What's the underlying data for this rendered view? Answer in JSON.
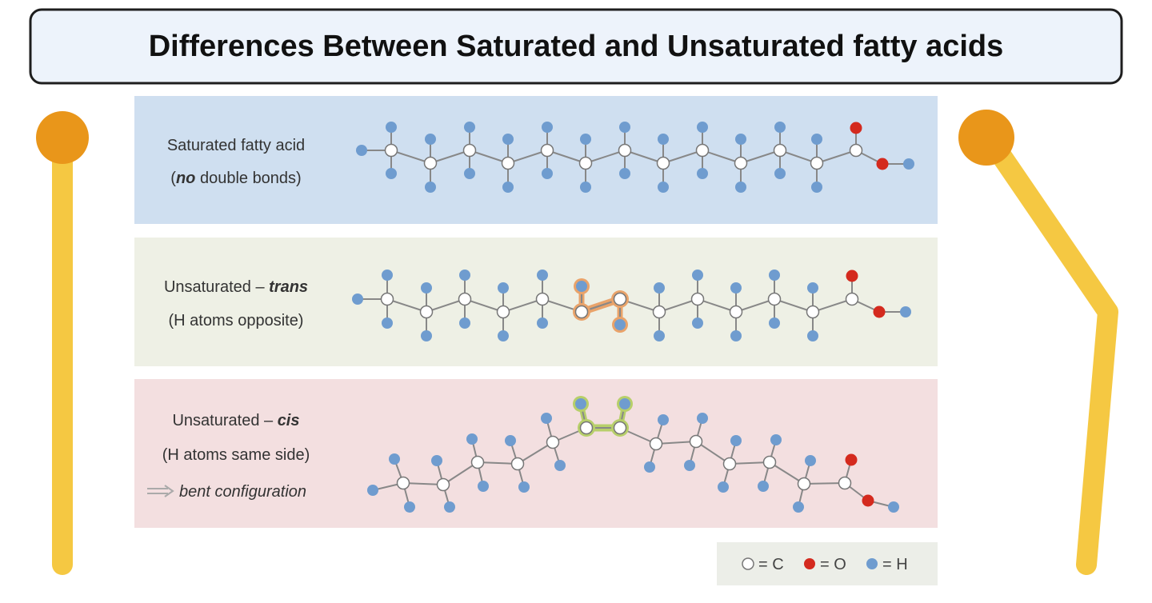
{
  "title": "Differences Between Saturated and Unsaturated fatty acids",
  "panels": [
    {
      "line1": "Saturated fatty acid",
      "line2": [
        "(",
        "no",
        " double bonds)"
      ]
    },
    {
      "line1": [
        "Unsaturated – ",
        "trans"
      ],
      "line2": "(H atoms opposite)"
    },
    {
      "line1": [
        "Unsaturated – ",
        "cis"
      ],
      "line2": "(H atoms same side)",
      "line3": "bent configuration"
    }
  ],
  "legend": {
    "carbon": "= C",
    "oxygen": "= O",
    "hydrogen": "= H"
  }
}
